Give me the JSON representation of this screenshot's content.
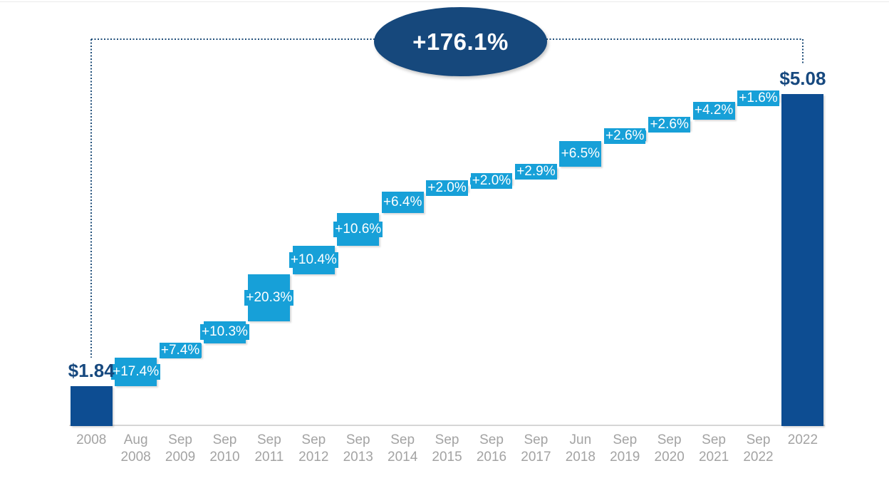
{
  "colors": {
    "background": "#FFFFFF",
    "dark_bar": "#0D4D92",
    "light_bar": "#17A0D8",
    "ellipse_fill": "#16487C",
    "value_label_text": "#17497F",
    "pct_label_text": "#FFFFFF",
    "axis_line": "#D6D6D6",
    "axis_label_text": "#A3A3A3",
    "dotted_line": "#1F4E79",
    "top_rule": "#EBEBEB"
  },
  "chart_data": {
    "type": "waterfall",
    "title": "",
    "total_change_label": "+176.1%",
    "start": {
      "category": "2008",
      "value": 1.84,
      "label": "$1.84"
    },
    "end": {
      "category": "2022",
      "value": 5.08,
      "label": "$5.08"
    },
    "steps": [
      {
        "category": [
          "Aug",
          "2008"
        ],
        "pct_label": "+17.4%",
        "pct": 17.4,
        "from": 1.84,
        "to": 2.16
      },
      {
        "category": [
          "Sep",
          "2009"
        ],
        "pct_label": "+7.4%",
        "pct": 7.4,
        "from": 2.16,
        "to": 2.32
      },
      {
        "category": [
          "Sep",
          "2010"
        ],
        "pct_label": "+10.3%",
        "pct": 10.3,
        "from": 2.32,
        "to": 2.56
      },
      {
        "category": [
          "Sep",
          "2011"
        ],
        "pct_label": "+20.3%",
        "pct": 20.3,
        "from": 2.56,
        "to": 3.08
      },
      {
        "category": [
          "Sep",
          "2012"
        ],
        "pct_label": "+10.4%",
        "pct": 10.4,
        "from": 3.08,
        "to": 3.4
      },
      {
        "category": [
          "Sep",
          "2013"
        ],
        "pct_label": "+10.6%",
        "pct": 10.6,
        "from": 3.4,
        "to": 3.76
      },
      {
        "category": [
          "Sep",
          "2014"
        ],
        "pct_label": "+6.4%",
        "pct": 6.4,
        "from": 3.76,
        "to": 4.0
      },
      {
        "category": [
          "Sep",
          "2015"
        ],
        "pct_label": "+2.0%",
        "pct": 2.0,
        "from": 4.0,
        "to": 4.08
      },
      {
        "category": [
          "Sep",
          "2016"
        ],
        "pct_label": "+2.0%",
        "pct": 2.0,
        "from": 4.08,
        "to": 4.16
      },
      {
        "category": [
          "Sep",
          "2017"
        ],
        "pct_label": "+2.9%",
        "pct": 2.9,
        "from": 4.16,
        "to": 4.28
      },
      {
        "category": [
          "Jun",
          "2018"
        ],
        "pct_label": "+6.5%",
        "pct": 6.5,
        "from": 4.28,
        "to": 4.56
      },
      {
        "category": [
          "Sep",
          "2019"
        ],
        "pct_label": "+2.6%",
        "pct": 2.6,
        "from": 4.56,
        "to": 4.68
      },
      {
        "category": [
          "Sep",
          "2020"
        ],
        "pct_label": "+2.6%",
        "pct": 2.6,
        "from": 4.68,
        "to": 4.8
      },
      {
        "category": [
          "Sep",
          "2021"
        ],
        "pct_label": "+4.2%",
        "pct": 4.2,
        "from": 4.8,
        "to": 5.0
      },
      {
        "category": [
          "Sep",
          "2022"
        ],
        "pct_label": "+1.6%",
        "pct": 1.6,
        "from": 5.0,
        "to": 5.08
      }
    ],
    "ylim": [
      1.4,
      5.85
    ],
    "grid": false,
    "legend": false
  }
}
